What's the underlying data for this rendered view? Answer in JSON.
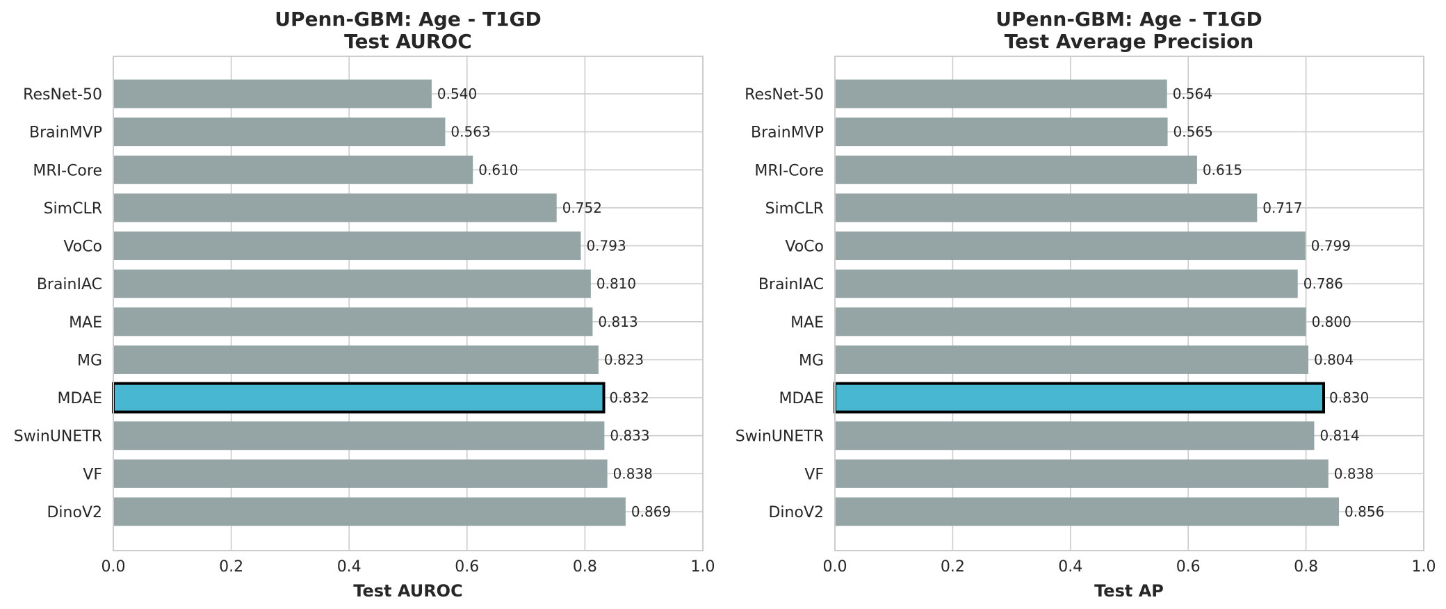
{
  "chart_data": [
    {
      "type": "bar",
      "orientation": "horizontal",
      "title": "UPenn-GBM: Age - T1GD",
      "subtitle": "Test AUROC",
      "xlabel": "Test AUROC",
      "xlim": [
        0,
        1
      ],
      "xticks": [
        "0.0",
        "0.2",
        "0.4",
        "0.6",
        "0.8",
        "1.0"
      ],
      "grid": true,
      "bar_color": "#95a5a6",
      "highlight_color": "#48b7d2",
      "highlight": "MDAE",
      "categories": [
        "ResNet-50",
        "BrainMVP",
        "MRI-Core",
        "SimCLR",
        "VoCo",
        "BrainIAC",
        "MAE",
        "MG",
        "MDAE",
        "SwinUNETR",
        "VF",
        "DinoV2"
      ],
      "values": [
        0.54,
        0.563,
        0.61,
        0.752,
        0.793,
        0.81,
        0.813,
        0.823,
        0.832,
        0.833,
        0.838,
        0.869
      ],
      "labels": [
        "0.540",
        "0.563",
        "0.610",
        "0.752",
        "0.793",
        "0.810",
        "0.813",
        "0.823",
        "0.832",
        "0.833",
        "0.838",
        "0.869"
      ]
    },
    {
      "type": "bar",
      "orientation": "horizontal",
      "title": "UPenn-GBM: Age - T1GD",
      "subtitle": "Test Average Precision",
      "xlabel": "Test AP",
      "xlim": [
        0,
        1
      ],
      "xticks": [
        "0.0",
        "0.2",
        "0.4",
        "0.6",
        "0.8",
        "1.0"
      ],
      "grid": true,
      "bar_color": "#95a5a6",
      "highlight_color": "#48b7d2",
      "highlight": "MDAE",
      "categories": [
        "ResNet-50",
        "BrainMVP",
        "MRI-Core",
        "SimCLR",
        "VoCo",
        "BrainIAC",
        "MAE",
        "MG",
        "MDAE",
        "SwinUNETR",
        "VF",
        "DinoV2"
      ],
      "values": [
        0.564,
        0.565,
        0.615,
        0.717,
        0.799,
        0.786,
        0.8,
        0.804,
        0.83,
        0.814,
        0.838,
        0.856
      ],
      "labels": [
        "0.564",
        "0.565",
        "0.615",
        "0.717",
        "0.799",
        "0.786",
        "0.800",
        "0.804",
        "0.830",
        "0.814",
        "0.838",
        "0.856"
      ]
    }
  ]
}
